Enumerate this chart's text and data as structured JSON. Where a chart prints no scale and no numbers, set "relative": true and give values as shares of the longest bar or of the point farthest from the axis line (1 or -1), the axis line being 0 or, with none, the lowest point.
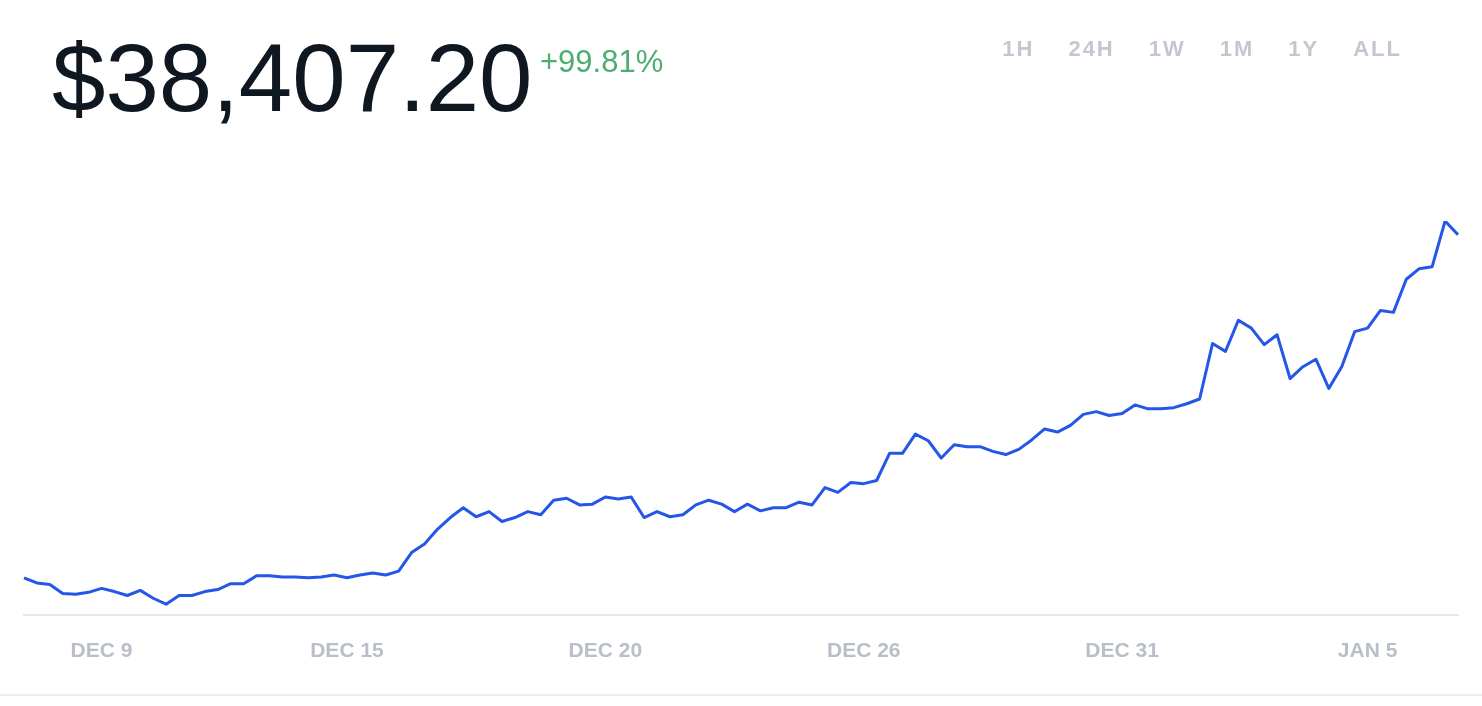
{
  "chart_data": {
    "type": "line",
    "title": "$38,407.20",
    "subtitle": "+99.81%",
    "annotations": [
      "1H",
      "24H",
      "1W",
      "1M",
      "1Y",
      "ALL"
    ],
    "relative": true,
    "legend": false,
    "grid": false,
    "categories": [
      null,
      null,
      null,
      null,
      null,
      null,
      "DEC 9",
      null,
      null,
      null,
      null,
      null,
      null,
      null,
      null,
      null,
      null,
      null,
      null,
      null,
      null,
      null,
      null,
      null,
      null,
      "DEC 15",
      null,
      null,
      null,
      null,
      null,
      null,
      null,
      null,
      null,
      null,
      null,
      null,
      null,
      null,
      null,
      null,
      null,
      null,
      null,
      "DEC 20",
      null,
      null,
      null,
      null,
      null,
      null,
      null,
      null,
      null,
      null,
      null,
      null,
      null,
      null,
      null,
      null,
      null,
      null,
      null,
      "DEC 26",
      null,
      null,
      null,
      null,
      null,
      null,
      null,
      null,
      null,
      null,
      null,
      null,
      null,
      null,
      null,
      null,
      null,
      null,
      null,
      "DEC 31",
      null,
      null,
      null,
      null,
      null,
      null,
      null,
      null,
      null,
      null,
      null,
      null,
      null,
      null,
      null,
      null,
      null,
      null,
      "JAN 5",
      null,
      null,
      null,
      null,
      null,
      null,
      null
    ],
    "series": [
      {
        "color": "#2456e8",
        "values": [
          0.094,
          0.081,
          0.077,
          0.054,
          0.052,
          0.057,
          0.067,
          0.059,
          0.049,
          0.062,
          0.042,
          0.027,
          0.049,
          0.049,
          0.059,
          0.064,
          0.079,
          0.079,
          0.099,
          0.099,
          0.096,
          0.096,
          0.094,
          0.096,
          0.101,
          0.094,
          0.101,
          0.106,
          0.101,
          0.111,
          0.158,
          0.18,
          0.217,
          0.247,
          0.272,
          0.249,
          0.262,
          0.237,
          0.247,
          0.262,
          0.254,
          0.291,
          0.296,
          0.279,
          0.281,
          0.299,
          0.294,
          0.299,
          0.247,
          0.262,
          0.249,
          0.254,
          0.279,
          0.291,
          0.281,
          0.262,
          0.281,
          0.264,
          0.272,
          0.272,
          0.286,
          0.279,
          0.323,
          0.311,
          0.336,
          0.333,
          0.341,
          0.41,
          0.41,
          0.459,
          0.442,
          0.398,
          0.432,
          0.427,
          0.427,
          0.415,
          0.407,
          0.42,
          0.444,
          0.472,
          0.464,
          0.481,
          0.509,
          0.516,
          0.506,
          0.511,
          0.533,
          0.523,
          0.523,
          0.526,
          0.536,
          0.548,
          0.689,
          0.669,
          0.748,
          0.728,
          0.686,
          0.711,
          0.6,
          0.63,
          0.649,
          0.575,
          0.63,
          0.719,
          0.728,
          0.773,
          0.768,
          0.852,
          0.879,
          0.884,
          1,
          0.965
        ]
      }
    ]
  }
}
